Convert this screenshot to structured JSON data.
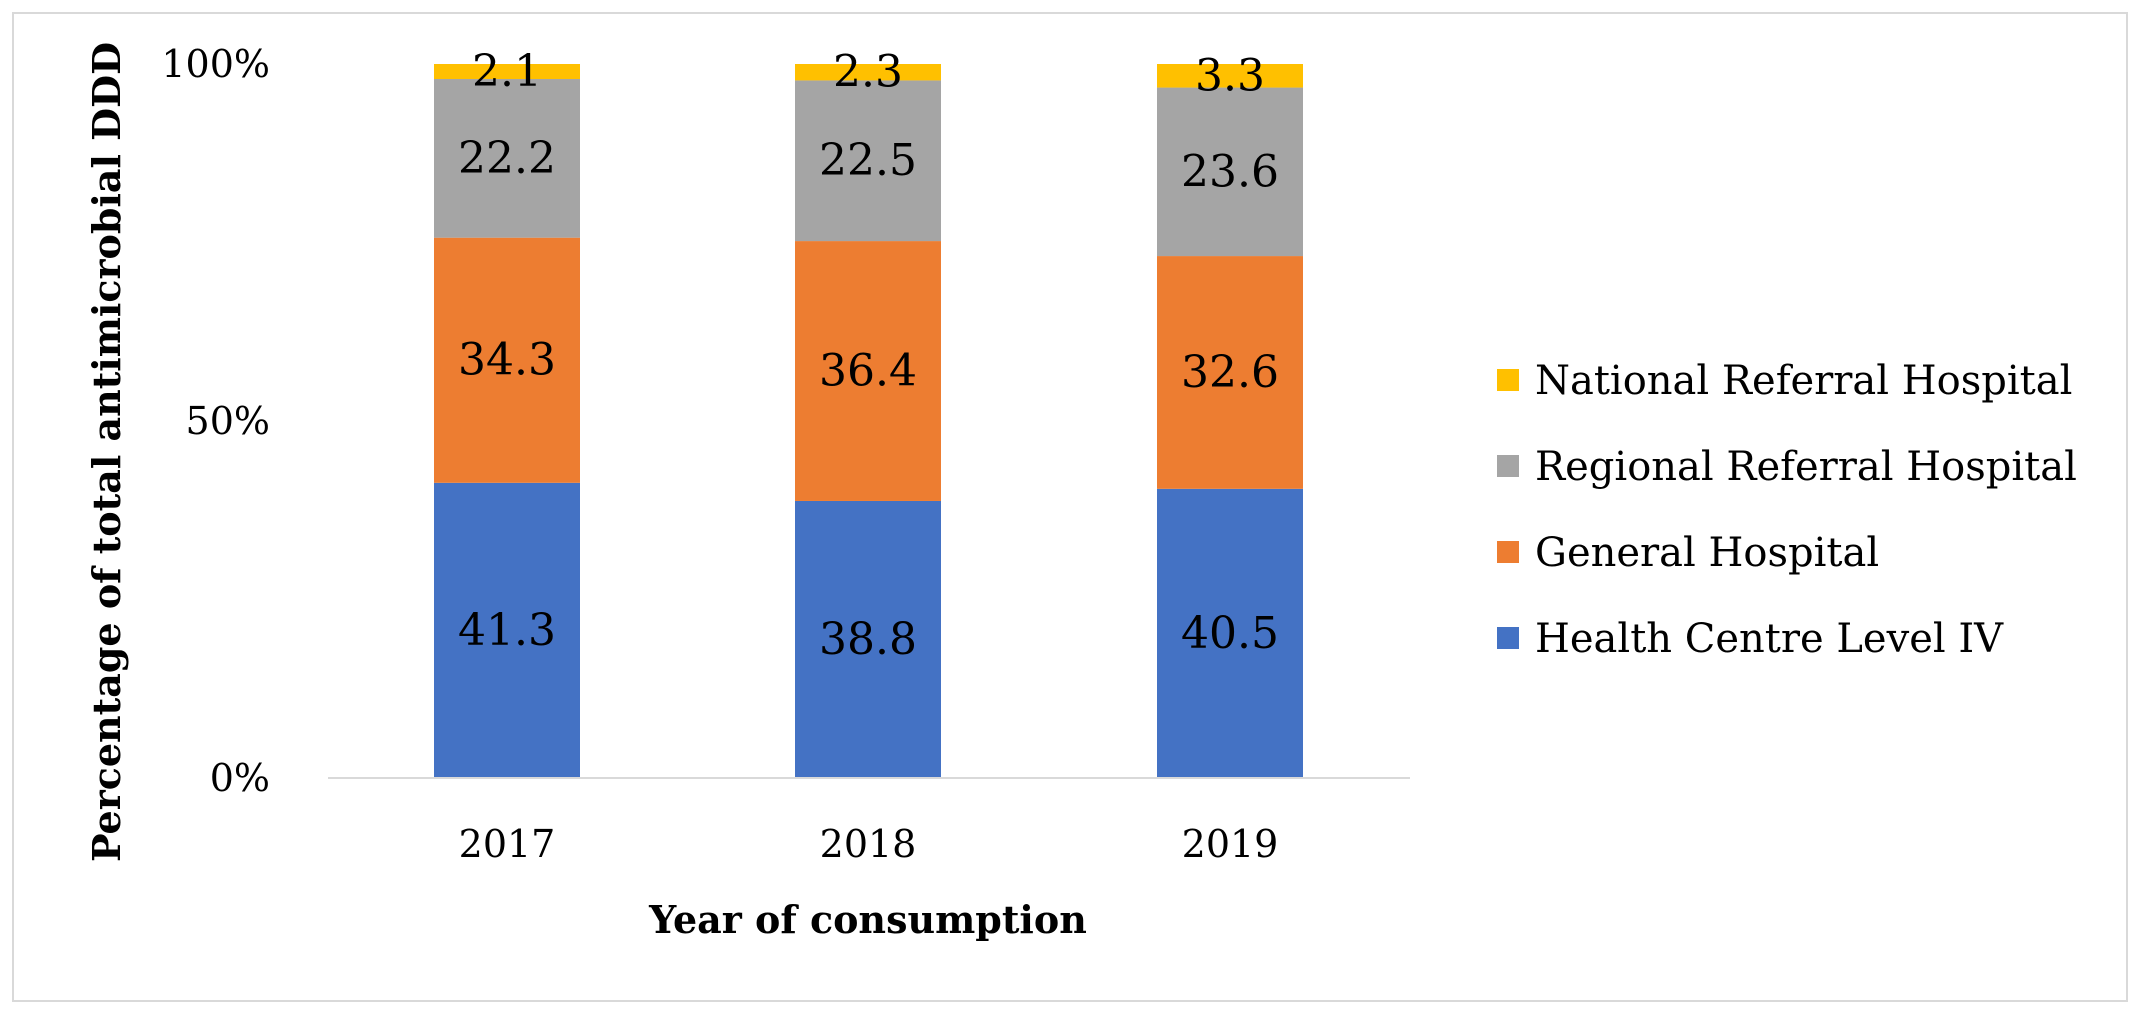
{
  "chart_data": {
    "type": "stacked-bar-100",
    "title": "",
    "xlabel": "Year of consumption",
    "ylabel": "Percentage of total antimicrobial DDD",
    "categories": [
      "2017",
      "2018",
      "2019"
    ],
    "ylim": [
      0,
      100
    ],
    "yticks": [
      {
        "value": 0,
        "label": "0%"
      },
      {
        "value": 50,
        "label": "50%"
      },
      {
        "value": 100,
        "label": "100%"
      }
    ],
    "series": [
      {
        "name": "Health Centre Level IV",
        "color": "#4472C4",
        "values": [
          41.3,
          38.8,
          40.5
        ],
        "labels": [
          "41.3",
          "38.8",
          "40.5"
        ]
      },
      {
        "name": "General Hospital",
        "color": "#ED7D31",
        "values": [
          34.3,
          36.4,
          32.6
        ],
        "labels": [
          "34.3",
          "36.4",
          "32.6"
        ]
      },
      {
        "name": "Regional Referral Hospital",
        "color": "#A5A5A5",
        "values": [
          22.2,
          22.5,
          23.6
        ],
        "labels": [
          "22.2",
          "22.5",
          "23.6"
        ]
      },
      {
        "name": "National Referral Hospital",
        "color": "#FFC000",
        "values": [
          2.1,
          2.3,
          3.3
        ],
        "labels": [
          "2.1",
          "2.3",
          "3.3"
        ]
      }
    ],
    "legend_order": [
      "National Referral Hospital",
      "Regional Referral Hospital",
      "General Hospital",
      "Health Centre Level IV"
    ],
    "legend_position": "right",
    "grid": false
  }
}
